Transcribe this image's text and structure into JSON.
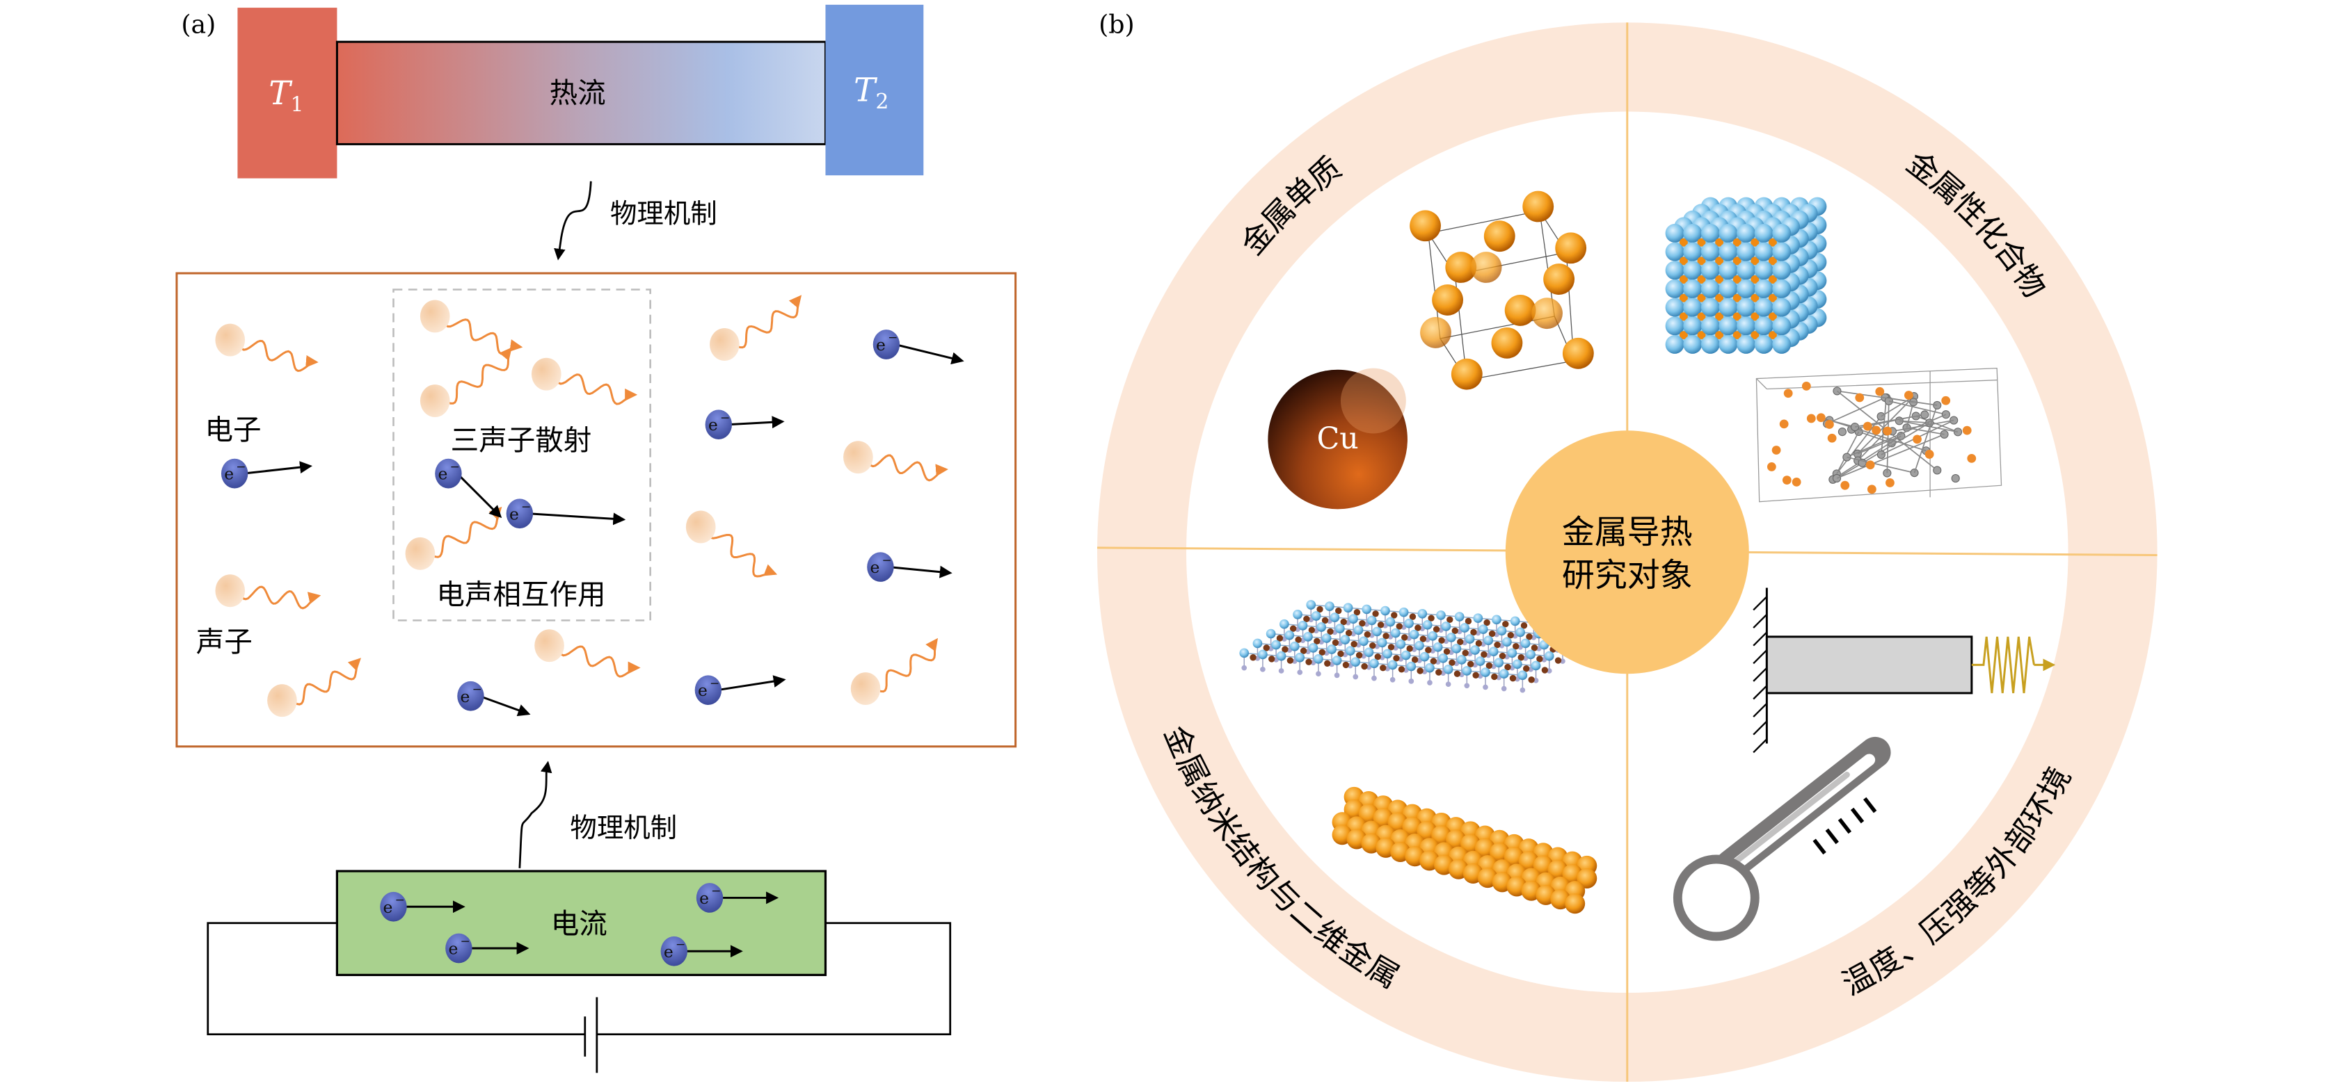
{
  "panel_a": {
    "label": "(a)",
    "t1": {
      "symbol": "T",
      "sub": "1"
    },
    "t2": {
      "symbol": "T",
      "sub": "2"
    },
    "heat_flow": "热流",
    "mechanism_top": "物理机制",
    "mechanism_bottom": "物理机制",
    "electron_text": "电子",
    "phonon_text": "声子",
    "three_phonon": "三声子散射",
    "electron_phonon": "电声相互作用",
    "current": "电流",
    "electron_symbol": "e",
    "electron_charge": "−"
  },
  "panel_b": {
    "label": "(b)",
    "center_line1": "金属导热",
    "center_line2": "研究对象",
    "q_top_left": "金属单质",
    "q_top_right": "金属性化合物",
    "q_bottom_left": "金属纳米结构与二维金属",
    "q_bottom_right": "温度、压强等外部环境",
    "cu_label": "Cu"
  },
  "colors": {
    "hot": "#de6a58",
    "cold": "#739ade",
    "box_border": "#c0652a",
    "phonon_wave": "#ef8a3a",
    "electron": "#4a5ab0",
    "current_fill": "#a9d18e",
    "ring": "#fce7d8",
    "divider": "#f7c77a",
    "center": "#fbc672",
    "spring": "#c8a020",
    "thermometer": "#7a7878"
  }
}
